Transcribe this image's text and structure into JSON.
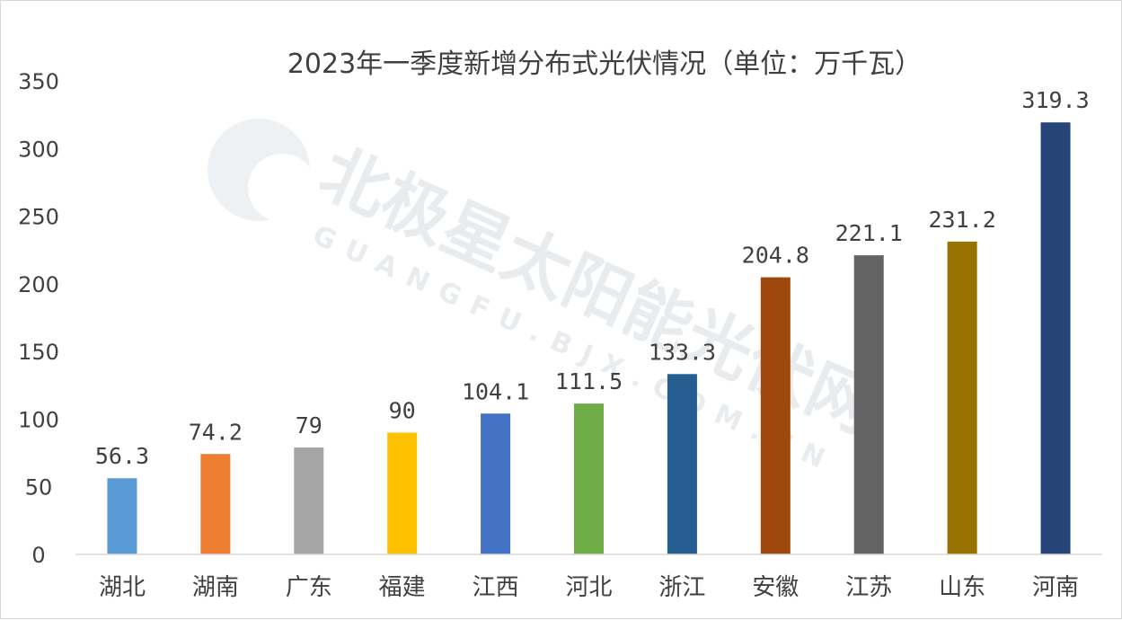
{
  "chart_data": {
    "type": "bar",
    "title": "2023年一季度新增分布式光伏情况（单位：万千瓦）",
    "categories": [
      "湖北",
      "湖南",
      "广东",
      "福建",
      "江西",
      "河北",
      "浙江",
      "安徽",
      "江苏",
      "山东",
      "河南"
    ],
    "values": [
      56.3,
      74.2,
      79,
      90,
      104.1,
      111.5,
      133.3,
      204.8,
      221.1,
      231.2,
      319.3
    ],
    "data_labels": [
      "56.3",
      "74.2",
      "79",
      "90",
      "104.1",
      "111.5",
      "133.3",
      "204.8",
      "221.1",
      "231.2",
      "319.3"
    ],
    "colors": [
      "#5b9bd5",
      "#ed7d31",
      "#a5a5a5",
      "#ffc000",
      "#4472c4",
      "#70ad47",
      "#255e91",
      "#9e480e",
      "#636363",
      "#997300",
      "#264478"
    ],
    "ylim": [
      0,
      350
    ],
    "yticks": [
      0,
      50,
      100,
      150,
      200,
      250,
      300,
      350
    ],
    "xlabel": "",
    "ylabel": "",
    "grid": false,
    "legend": "none"
  },
  "watermark": {
    "text": "北极星太阳能光伏网",
    "subtext": "GUANGFU.BJX.COM.CN",
    "color": "#e9ecef"
  }
}
